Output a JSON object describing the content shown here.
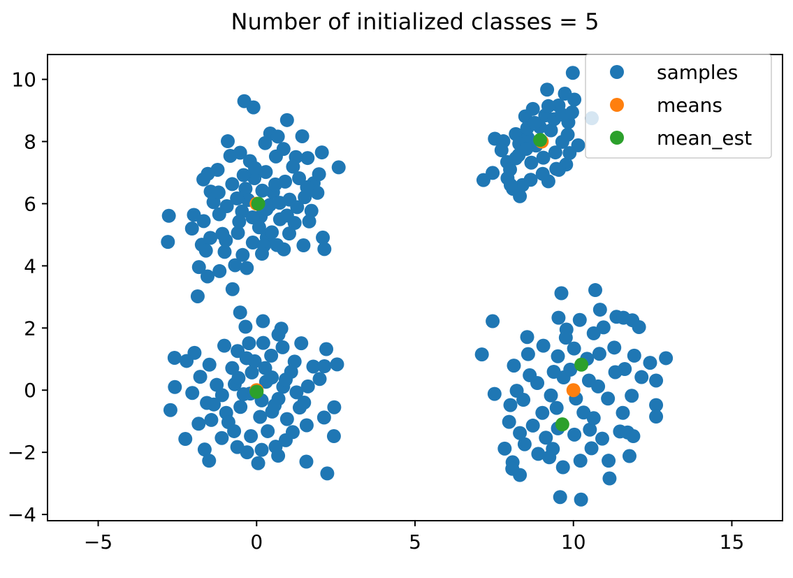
{
  "chart_data": {
    "type": "scatter",
    "title": "Number of initialized classes = 5",
    "xlabel": "",
    "ylabel": "",
    "xlim": [
      -6.6,
      16.6
    ],
    "ylim": [
      -4.2,
      10.8
    ],
    "xticks": [
      -5,
      0,
      5,
      10,
      15
    ],
    "yticks": [
      -4,
      -2,
      0,
      2,
      4,
      6,
      8,
      10
    ],
    "x_tick_labels": [
      "−5",
      "0",
      "5",
      "10",
      "15"
    ],
    "y_tick_labels": [
      "−4",
      "−2",
      "0",
      "2",
      "4",
      "6",
      "8",
      "10"
    ],
    "grid": false,
    "legend_position": "top-right",
    "colors": {
      "samples": "#1f77b4",
      "means": "#ff7f0e",
      "mean_est": "#2ca02c"
    },
    "series": [
      {
        "name": "samples",
        "points": [
          [
            -0.39,
            9.3
          ],
          [
            -0.1,
            9.1
          ],
          [
            0.43,
            8.26
          ],
          [
            0.67,
            8.16
          ],
          [
            0.96,
            8.69
          ],
          [
            1.44,
            8.17
          ],
          [
            0.85,
            7.76
          ],
          [
            -0.91,
            8.01
          ],
          [
            -0.52,
            7.64
          ],
          [
            0.27,
            7.95
          ],
          [
            -0.83,
            7.54
          ],
          [
            -0.21,
            7.37
          ],
          [
            1.61,
            7.47
          ],
          [
            2.06,
            7.65
          ],
          [
            2.59,
            7.17
          ],
          [
            1.24,
            7.5
          ],
          [
            0.61,
            7.52
          ],
          [
            -1.23,
            7.09
          ],
          [
            -1.68,
            6.78
          ],
          [
            -1.54,
            6.96
          ],
          [
            -0.77,
            6.63
          ],
          [
            -0.07,
            6.82
          ],
          [
            0.29,
            7.02
          ],
          [
            1.34,
            6.82
          ],
          [
            1.8,
            6.66
          ],
          [
            1.97,
            6.95
          ],
          [
            1.92,
            6.35
          ],
          [
            -1.45,
            6.39
          ],
          [
            -1.36,
            6.05
          ],
          [
            -0.35,
            6.48
          ],
          [
            0.52,
            6.37
          ],
          [
            0.9,
            6.71
          ],
          [
            1.04,
            6.13
          ],
          [
            1.52,
            6.21
          ],
          [
            1.73,
            5.77
          ],
          [
            -2.77,
            5.61
          ],
          [
            -1.98,
            5.64
          ],
          [
            -2.04,
            5.2
          ],
          [
            -1.67,
            5.44
          ],
          [
            -1.18,
            5.66
          ],
          [
            -0.46,
            5.75
          ],
          [
            0.13,
            5.59
          ],
          [
            0.31,
            5.82
          ],
          [
            0.74,
            5.5
          ],
          [
            1.2,
            5.38
          ],
          [
            1.66,
            5.43
          ],
          [
            -1.46,
            4.9
          ],
          [
            -0.97,
            4.82
          ],
          [
            -0.59,
            5.06
          ],
          [
            -0.12,
            4.75
          ],
          [
            0.32,
            4.91
          ],
          [
            0.64,
            4.67
          ],
          [
            1.03,
            5.04
          ],
          [
            1.48,
            4.66
          ],
          [
            2.09,
            4.91
          ],
          [
            2.14,
            4.54
          ],
          [
            -2.8,
            4.77
          ],
          [
            -1.73,
            4.68
          ],
          [
            -1.6,
            4.49
          ],
          [
            -1.01,
            4.45
          ],
          [
            -0.44,
            4.35
          ],
          [
            0.23,
            4.65
          ],
          [
            0.86,
            4.53
          ],
          [
            -1.82,
            3.96
          ],
          [
            -1.55,
            3.66
          ],
          [
            -1.17,
            3.83
          ],
          [
            -0.68,
            4.02
          ],
          [
            -0.31,
            3.93
          ],
          [
            -0.76,
            3.25
          ],
          [
            -1.86,
            3.02
          ],
          [
            -0.27,
            6.12
          ],
          [
            0.42,
            5.96
          ],
          [
            -0.62,
            6.17
          ],
          [
            0.18,
            6.42
          ],
          [
            -0.13,
            5.56
          ],
          [
            0.73,
            6.03
          ],
          [
            -0.94,
            5.92
          ],
          [
            1.28,
            5.89
          ],
          [
            0.08,
            5.24
          ],
          [
            -0.55,
            5.42
          ],
          [
            0.96,
            5.62
          ],
          [
            -1.2,
            6.36
          ],
          [
            1.15,
            7.19
          ],
          [
            -0.41,
            6.92
          ],
          [
            0.59,
            6.62
          ],
          [
            0.48,
            5.08
          ],
          [
            -0.05,
            7.14
          ],
          [
            1.59,
            6.53
          ],
          [
            -1.08,
            5.03
          ],
          [
            0.17,
            4.39
          ],
          [
            -2.59,
            1.04
          ],
          [
            -1.96,
            1.2
          ],
          [
            -2.21,
            0.94
          ],
          [
            -1.78,
            0.43
          ],
          [
            -1.49,
            0.82
          ],
          [
            -1.02,
            1.43
          ],
          [
            -0.6,
            1.26
          ],
          [
            -0.24,
            1.51
          ],
          [
            0.21,
            1.52
          ],
          [
            0.69,
            1.79
          ],
          [
            0.82,
            1.38
          ],
          [
            1.41,
            1.51
          ],
          [
            2.2,
            1.32
          ],
          [
            1.79,
            0.76
          ],
          [
            2.14,
            0.77
          ],
          [
            2.54,
            0.83
          ],
          [
            -2.58,
            0.1
          ],
          [
            -2.03,
            -0.09
          ],
          [
            -1.57,
            -0.41
          ],
          [
            -1.09,
            -0.16
          ],
          [
            -0.69,
            0.19
          ],
          [
            -0.2,
            -0.11
          ],
          [
            0.3,
            0.27
          ],
          [
            0.84,
            0.11
          ],
          [
            1.26,
            -0.07
          ],
          [
            1.62,
            0.12
          ],
          [
            1.99,
            0.36
          ],
          [
            -2.72,
            -0.64
          ],
          [
            -2.25,
            -1.57
          ],
          [
            -1.83,
            -1.08
          ],
          [
            -1.43,
            -0.96
          ],
          [
            -0.96,
            -0.73
          ],
          [
            -0.51,
            -0.54
          ],
          [
            0.11,
            -0.86
          ],
          [
            0.49,
            -0.69
          ],
          [
            0.96,
            -0.93
          ],
          [
            1.36,
            -0.56
          ],
          [
            1.58,
            -1.13
          ],
          [
            2.45,
            -0.55
          ],
          [
            2.13,
            -0.88
          ],
          [
            -1.64,
            -1.91
          ],
          [
            -1.5,
            -2.27
          ],
          [
            -1.1,
            -1.54
          ],
          [
            -0.61,
            -1.83
          ],
          [
            -0.18,
            -1.48
          ],
          [
            0.16,
            -1.92
          ],
          [
            0.6,
            -1.82
          ],
          [
            0.92,
            -1.61
          ],
          [
            0.68,
            -2.11
          ],
          [
            1.14,
            -1.35
          ],
          [
            1.57,
            -2.3
          ],
          [
            2.23,
            -2.68
          ],
          [
            2.44,
            -1.48
          ],
          [
            0.05,
            -2.35
          ],
          [
            -0.3,
            -2.0
          ],
          [
            -0.52,
            2.5
          ],
          [
            -0.35,
            2.04
          ],
          [
            0.2,
            2.22
          ],
          [
            0.78,
            1.98
          ],
          [
            0.46,
            1.11
          ],
          [
            -0.15,
            0.57
          ],
          [
            0.48,
            0.41
          ],
          [
            -0.77,
            0.71
          ],
          [
            0.16,
            -0.33
          ],
          [
            -0.41,
            -0.13
          ],
          [
            0.69,
            -0.28
          ],
          [
            -0.06,
            0.93
          ],
          [
            1.09,
            0.59
          ],
          [
            -1.26,
            0.17
          ],
          [
            0.35,
            -1.32
          ],
          [
            -0.89,
            -1.03
          ],
          [
            1.2,
            0.92
          ],
          [
            -0.32,
            1.03
          ],
          [
            -1.35,
            -0.46
          ],
          [
            0.92,
            0.34
          ],
          [
            -0.71,
            -1.32
          ],
          [
            0.27,
            0.71
          ],
          [
            1.5,
            -0.4
          ],
          [
            -0.57,
            0.39
          ],
          [
            0.57,
            -0.49
          ],
          [
            9.98,
            10.21
          ],
          [
            9.17,
            9.67
          ],
          [
            9.73,
            9.54
          ],
          [
            10.03,
            9.35
          ],
          [
            8.72,
            9.05
          ],
          [
            9.53,
            9.16
          ],
          [
            8.48,
            8.81
          ],
          [
            9.11,
            8.84
          ],
          [
            10.58,
            8.75
          ],
          [
            9.84,
            8.62
          ],
          [
            7.52,
            8.09
          ],
          [
            7.79,
            8.01
          ],
          [
            8.18,
            8.24
          ],
          [
            8.56,
            8.12
          ],
          [
            9.29,
            8.36
          ],
          [
            9.65,
            7.99
          ],
          [
            10.15,
            7.88
          ],
          [
            7.73,
            7.72
          ],
          [
            7.91,
            7.34
          ],
          [
            8.27,
            7.56
          ],
          [
            8.67,
            7.32
          ],
          [
            9.05,
            7.48
          ],
          [
            9.43,
            7.65
          ],
          [
            9.77,
            7.26
          ],
          [
            7.16,
            6.76
          ],
          [
            7.45,
            6.99
          ],
          [
            7.92,
            6.82
          ],
          [
            8.09,
            6.48
          ],
          [
            8.31,
            6.24
          ],
          [
            8.65,
            6.77
          ],
          [
            9.03,
            6.96
          ],
          [
            9.21,
            6.72
          ],
          [
            9.54,
            7.09
          ],
          [
            8.39,
            6.6
          ],
          [
            8.82,
            7.87
          ],
          [
            9.39,
            8.72
          ],
          [
            8.94,
            8.47
          ],
          [
            8.29,
            7.93
          ],
          [
            9.82,
            8.22
          ],
          [
            8.54,
            8.43
          ],
          [
            8.0,
            7.1
          ],
          [
            9.63,
            8.87
          ],
          [
            9.21,
            9.14
          ],
          [
            8.51,
            7.76
          ],
          [
            9.96,
            8.94
          ],
          [
            8.18,
            7.46
          ],
          [
            9.88,
            7.63
          ],
          [
            8.78,
            8.6
          ],
          [
            9.46,
            7.12
          ],
          [
            8.02,
            6.6
          ],
          [
            10.69,
            3.22
          ],
          [
            9.62,
            3.12
          ],
          [
            10.84,
            2.59
          ],
          [
            7.45,
            2.22
          ],
          [
            8.54,
            1.71
          ],
          [
            9.53,
            2.33
          ],
          [
            9.78,
            1.95
          ],
          [
            10.2,
            2.26
          ],
          [
            10.64,
            1.83
          ],
          [
            11.36,
            2.36
          ],
          [
            11.58,
            2.33
          ],
          [
            11.86,
            2.25
          ],
          [
            12.07,
            2.03
          ],
          [
            11.92,
            1.11
          ],
          [
            12.42,
            0.88
          ],
          [
            12.92,
            1.03
          ],
          [
            7.11,
            1.15
          ],
          [
            8.12,
            0.79
          ],
          [
            8.57,
            1.16
          ],
          [
            9.05,
            1.43
          ],
          [
            9.51,
            1.09
          ],
          [
            10.02,
            1.34
          ],
          [
            10.43,
            1.01
          ],
          [
            10.82,
            1.17
          ],
          [
            11.29,
            1.37
          ],
          [
            11.62,
            0.68
          ],
          [
            12.15,
            0.42
          ],
          [
            12.61,
            0.31
          ],
          [
            7.51,
            -0.12
          ],
          [
            8.01,
            -0.48
          ],
          [
            8.42,
            -0.31
          ],
          [
            8.86,
            0.23
          ],
          [
            9.29,
            -0.17
          ],
          [
            9.69,
            0.41
          ],
          [
            10.49,
            0.31
          ],
          [
            11.09,
            -0.27
          ],
          [
            11.84,
            -0.18
          ],
          [
            12.61,
            -0.48
          ],
          [
            12.61,
            -0.85
          ],
          [
            7.97,
            -1.02
          ],
          [
            8.31,
            -1.38
          ],
          [
            8.72,
            -1.14
          ],
          [
            9.13,
            -1.53
          ],
          [
            9.51,
            -1.23
          ],
          [
            10.03,
            -1.43
          ],
          [
            10.52,
            -1.27
          ],
          [
            10.91,
            -1.56
          ],
          [
            11.47,
            -1.33
          ],
          [
            11.71,
            -1.36
          ],
          [
            11.89,
            -1.48
          ],
          [
            7.83,
            -1.88
          ],
          [
            8.08,
            -2.32
          ],
          [
            8.46,
            -1.74
          ],
          [
            8.89,
            -2.05
          ],
          [
            9.35,
            -1.89
          ],
          [
            9.67,
            -2.48
          ],
          [
            10.22,
            -2.27
          ],
          [
            10.57,
            -1.87
          ],
          [
            11.11,
            -2.27
          ],
          [
            11.77,
            -2.12
          ],
          [
            8.07,
            -2.53
          ],
          [
            8.31,
            -2.73
          ],
          [
            11.14,
            -2.84
          ],
          [
            9.58,
            -3.44
          ],
          [
            10.24,
            -3.52
          ],
          [
            9.9,
            0.66
          ],
          [
            10.32,
            -0.72
          ],
          [
            9.38,
            0.59
          ],
          [
            10.78,
            0.12
          ],
          [
            9.02,
            -0.73
          ],
          [
            10.08,
            -0.27
          ],
          [
            11.32,
            0.58
          ],
          [
            8.62,
            0.48
          ],
          [
            9.47,
            -0.57
          ],
          [
            10.64,
            -0.9
          ],
          [
            11.56,
            -0.73
          ],
          [
            9.76,
            1.69
          ],
          [
            8.21,
            -0.02
          ],
          [
            10.95,
            2.02
          ],
          [
            9.24,
            -2.16
          ]
        ]
      },
      {
        "name": "means",
        "points": [
          [
            0,
            6
          ],
          [
            0,
            0
          ],
          [
            9,
            8
          ],
          [
            10,
            0
          ]
        ]
      },
      {
        "name": "mean_est",
        "points": [
          [
            0.05,
            6.0
          ],
          [
            0.0,
            -0.05
          ],
          [
            8.95,
            8.05
          ],
          [
            10.25,
            0.82
          ],
          [
            9.65,
            -1.1
          ]
        ]
      }
    ]
  }
}
